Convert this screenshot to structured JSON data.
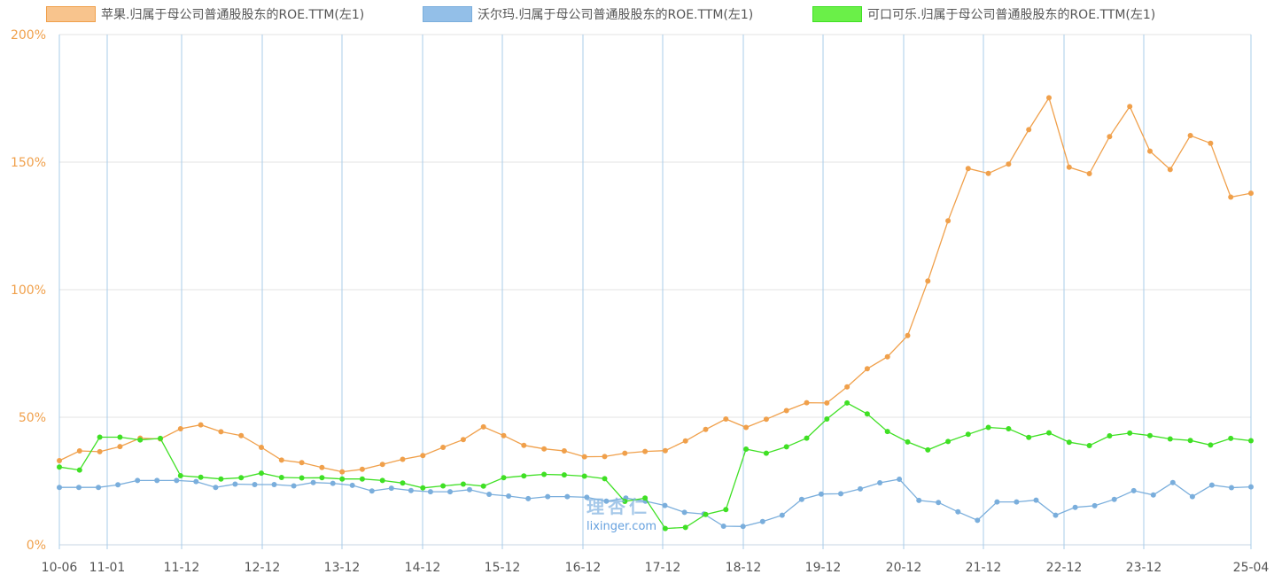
{
  "chart_data": {
    "type": "line",
    "title": "",
    "xlabel": "",
    "ylabel": "",
    "ylim": [
      0,
      200
    ],
    "yticks": [
      "0%",
      "50%",
      "100%",
      "150%",
      "200%"
    ],
    "xticks": [
      "10-06",
      "11-01",
      "11-12",
      "12-12",
      "13-12",
      "14-12",
      "15-12",
      "16-12",
      "17-12",
      "18-12",
      "19-12",
      "20-12",
      "21-12",
      "22-12",
      "23-12",
      "25-04"
    ],
    "grid": true,
    "legend_position": "top",
    "series": [
      {
        "name": "苹果.归属于母公司普通股股东的ROE.TTM(左1)",
        "color": "#f0a04b",
        "fill": "#f8c48d",
        "values": [
          33,
          36.8,
          36.5,
          38.5,
          41.8,
          41.5,
          45.5,
          47,
          44.3,
          42.8,
          38.2,
          33.2,
          32.2,
          30.3,
          28.6,
          29.6,
          31.5,
          33.5,
          35,
          38.2,
          41.2,
          46.2,
          42.8,
          39,
          37.6,
          36.8,
          34.5,
          34.6,
          35.9,
          36.6,
          36.9,
          40.7,
          45.2,
          49.3,
          46,
          49.2,
          52.6,
          55.7,
          55.6,
          61.9,
          69,
          73.7,
          82,
          103.4,
          127,
          147.5,
          145.6,
          149.2,
          162.7,
          175.2,
          148,
          145.5,
          160,
          171.8,
          154.3,
          147.1,
          160.4,
          157.4,
          136.3,
          137.8
        ]
      },
      {
        "name": "沃尔玛.归属于母公司普通股股东的ROE.TTM(左1)",
        "color": "#7aaedc",
        "fill": "#93bfe8",
        "values": [
          22.5,
          22.5,
          22.5,
          23.5,
          25.2,
          25.2,
          25.2,
          24.8,
          22.5,
          23.8,
          23.6,
          23.6,
          23.1,
          24.4,
          24.1,
          23.3,
          21.1,
          22.2,
          21.3,
          20.8,
          20.8,
          21.6,
          19.8,
          19.1,
          18.1,
          18.9,
          18.9,
          18.6,
          17.1,
          18.3,
          17.1,
          15.4,
          12.7,
          12.1,
          7.3,
          7.2,
          9.1,
          11.6,
          17.8,
          19.9,
          20,
          21.9,
          24.3,
          25.7,
          17.4,
          16.6,
          12.9,
          9.6,
          16.8,
          16.8,
          17.5,
          11.6,
          14.7,
          15.3,
          17.8,
          21.2,
          19.5,
          24.4,
          18.9,
          23.4,
          22.4,
          22.7
        ]
      },
      {
        "name": "可口可乐.归属于母公司普通股股东的ROE.TTM(左1)",
        "color": "#3fe024",
        "fill": "#6af048",
        "values": [
          30.5,
          29.3,
          42.2,
          42.2,
          41.1,
          41.7,
          27.1,
          26.5,
          25.8,
          26.3,
          28.1,
          26.4,
          26.2,
          26.3,
          25.8,
          25.8,
          25.2,
          24.2,
          22.3,
          23.1,
          23.8,
          23,
          26.3,
          27,
          27.6,
          27.4,
          26.9,
          25.9,
          17,
          18.3,
          6.4,
          6.8,
          11.9,
          13.8,
          37.5,
          35.9,
          38.4,
          41.8,
          49.3,
          55.6,
          51.3,
          44.4,
          40.3,
          37.2,
          40.5,
          43.3,
          46,
          45.5,
          42.1,
          43.9,
          40.2,
          38.9,
          42.7,
          43.8,
          42.8,
          41.5,
          40.9,
          39.1,
          41.7,
          40.8
        ]
      }
    ]
  },
  "watermark": {
    "logo_text": "理杏仁",
    "site": "lixinger.com"
  }
}
